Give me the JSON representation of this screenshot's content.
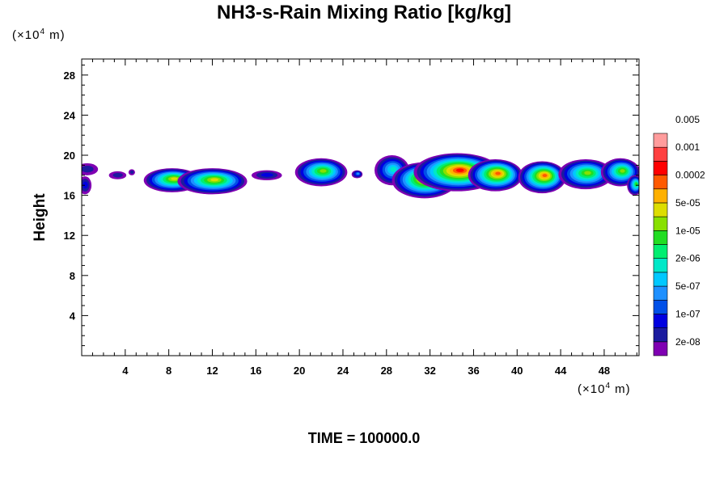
{
  "chart_data": {
    "type": "heatmap",
    "title": "NH3-s-Rain Mixing Ratio [kg/kg]",
    "ylabel": "Height",
    "x_unit": {
      "prefix": "(×10",
      "exp": "4",
      "suffix": " m)"
    },
    "y_unit": {
      "prefix": "(×10",
      "exp": "4",
      "suffix": " m)"
    },
    "xlim": [
      0,
      51.2
    ],
    "ylim": [
      0,
      29.6
    ],
    "x_ticks": [
      4,
      8,
      12,
      16,
      20,
      24,
      28,
      32,
      36,
      40,
      44,
      48
    ],
    "y_ticks": [
      4,
      8,
      12,
      16,
      20,
      24,
      28
    ],
    "colorbar": {
      "colors": [
        "#7f00b2",
        "#1b1b9f",
        "#0000e0",
        "#0050e8",
        "#1e90ff",
        "#00c8ff",
        "#00e8c8",
        "#00ee70",
        "#22dd22",
        "#88e000",
        "#dddd00",
        "#ffb000",
        "#ff5a00",
        "#ff0000",
        "#ff4040",
        "#ff9c9c"
      ],
      "labels": [
        "2e-08",
        "1e-07",
        "5e-07",
        "2e-06",
        "1e-05",
        "5e-05",
        "0.0002",
        "0.001",
        "0.005"
      ]
    },
    "blobs": [
      {
        "x": 0.5,
        "y": 18.6,
        "rx": 1.0,
        "ry": 0.6,
        "peak": 1
      },
      {
        "x": 0.3,
        "y": 17.0,
        "rx": 0.6,
        "ry": 0.9,
        "peak": 2
      },
      {
        "x": 3.3,
        "y": 18.0,
        "rx": 0.8,
        "ry": 0.4,
        "peak": 1
      },
      {
        "x": 4.6,
        "y": 18.3,
        "rx": 0.3,
        "ry": 0.3,
        "peak": 1
      },
      {
        "x": 8.3,
        "y": 17.5,
        "rx": 2.6,
        "ry": 1.2,
        "peak": 10
      },
      {
        "x": 12.0,
        "y": 17.4,
        "rx": 3.2,
        "ry": 1.3,
        "peak": 10
      },
      {
        "x": 17.0,
        "y": 18.0,
        "rx": 1.4,
        "ry": 0.5,
        "peak": 2
      },
      {
        "x": 22.0,
        "y": 18.3,
        "rx": 2.4,
        "ry": 1.4,
        "peak": 9
      },
      {
        "x": 25.3,
        "y": 18.1,
        "rx": 0.5,
        "ry": 0.4,
        "peak": 4
      },
      {
        "x": 28.5,
        "y": 18.5,
        "rx": 1.6,
        "ry": 1.5,
        "peak": 6
      },
      {
        "x": 31.5,
        "y": 17.5,
        "rx": 3.0,
        "ry": 1.8,
        "peak": 12
      },
      {
        "x": 34.5,
        "y": 18.3,
        "rx": 4.0,
        "ry": 1.9,
        "peak": 13
      },
      {
        "x": 38.0,
        "y": 18.0,
        "rx": 2.5,
        "ry": 1.6,
        "peak": 12
      },
      {
        "x": 42.3,
        "y": 17.8,
        "rx": 2.2,
        "ry": 1.6,
        "peak": 12
      },
      {
        "x": 46.3,
        "y": 18.1,
        "rx": 2.5,
        "ry": 1.5,
        "peak": 9
      },
      {
        "x": 49.5,
        "y": 18.3,
        "rx": 1.8,
        "ry": 1.4,
        "peak": 9
      },
      {
        "x": 50.8,
        "y": 17.0,
        "rx": 0.7,
        "ry": 1.0,
        "peak": 8
      }
    ],
    "footer": "TIME = 100000.0"
  }
}
